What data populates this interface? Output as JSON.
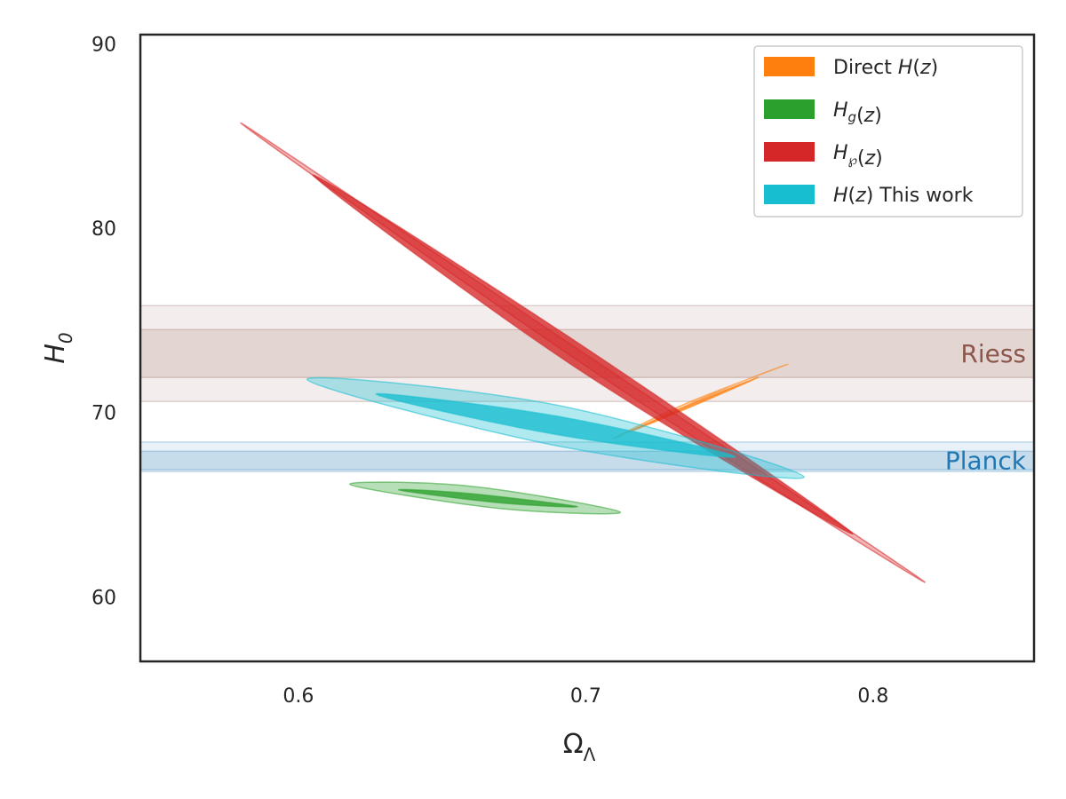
{
  "chart_data": {
    "type": "contour",
    "title": "",
    "xlabel": {
      "main": "Ω",
      "sub": "Λ"
    },
    "ylabel": {
      "main": "H",
      "sub": "0"
    },
    "xlim": [
      0.545,
      0.856
    ],
    "ylim": [
      56.5,
      90.5
    ],
    "xticks": [
      0.6,
      0.7,
      0.8
    ],
    "xtick_labels": [
      "0.6",
      "0.7",
      "0.8"
    ],
    "yticks": [
      60,
      70,
      80,
      90
    ],
    "ytick_labels": [
      "60",
      "70",
      "80",
      "90"
    ],
    "grid": false,
    "legend_position": "top-right",
    "bands": [
      {
        "name": "Riess",
        "center": 73.2,
        "sigma1": [
          71.9,
          74.5
        ],
        "sigma2": [
          70.6,
          75.8
        ],
        "color": "#8c564b"
      },
      {
        "name": "Planck",
        "center": 67.4,
        "sigma1": [
          66.9,
          67.9
        ],
        "sigma2": [
          66.8,
          68.4
        ],
        "color": "#1f77b4"
      }
    ],
    "series": [
      {
        "name_parts": [
          {
            "t": "Direct ",
            "i": false
          },
          {
            "t": "H",
            "i": true
          },
          {
            "t": "(",
            "i": false
          },
          {
            "t": "z",
            "i": true
          },
          {
            "t": ")",
            "i": false
          }
        ],
        "color": "#ff7f0e",
        "contours": [
          {
            "level": "1sigma",
            "points": [
              [
                0.716,
                69.0
              ],
              [
                0.735,
                70.2
              ],
              [
                0.76,
                71.9
              ],
              [
                0.742,
                70.8
              ]
            ]
          },
          {
            "level": "2sigma",
            "points": [
              [
                0.71,
                68.6
              ],
              [
                0.735,
                70.5
              ],
              [
                0.77,
                72.6
              ],
              [
                0.75,
                71.4
              ]
            ]
          }
        ]
      },
      {
        "name_parts": [
          {
            "t": "H",
            "i": true
          },
          {
            "t": "g",
            "i": true,
            "sub": true
          },
          {
            "t": "(",
            "i": false
          },
          {
            "t": "z",
            "i": true
          },
          {
            "t": ")",
            "i": false
          }
        ],
        "color": "#2ca02c",
        "contours": [
          {
            "level": "1sigma",
            "points": [
              [
                0.635,
                65.8
              ],
              [
                0.66,
                65.6
              ],
              [
                0.697,
                64.9
              ],
              [
                0.67,
                65.1
              ]
            ]
          },
          {
            "level": "2sigma",
            "points": [
              [
                0.618,
                66.1
              ],
              [
                0.66,
                66.0
              ],
              [
                0.712,
                64.6
              ],
              [
                0.67,
                64.8
              ]
            ]
          }
        ]
      },
      {
        "name_parts": [
          {
            "t": "H",
            "i": true
          },
          {
            "t": "℘",
            "i": true,
            "sub": true
          },
          {
            "t": "(",
            "i": false
          },
          {
            "t": "z",
            "i": true
          },
          {
            "t": ")",
            "i": false
          }
        ],
        "color": "#d62728",
        "contours": [
          {
            "level": "1sigma",
            "points": [
              [
                0.605,
                82.9
              ],
              [
                0.7,
                73.5
              ],
              [
                0.793,
                63.4
              ],
              [
                0.695,
                72.6
              ]
            ]
          },
          {
            "level": "2sigma",
            "points": [
              [
                0.58,
                85.7
              ],
              [
                0.69,
                74.2
              ],
              [
                0.818,
                60.8
              ],
              [
                0.705,
                72.0
              ]
            ]
          }
        ]
      },
      {
        "name_parts": [
          {
            "t": "H",
            "i": true
          },
          {
            "t": "(",
            "i": false
          },
          {
            "t": "z",
            "i": true
          },
          {
            "t": ") This work",
            "i": false
          }
        ],
        "color": "#17becf",
        "contours": [
          {
            "level": "1sigma",
            "points": [
              [
                0.627,
                71.0
              ],
              [
                0.69,
                69.8
              ],
              [
                0.752,
                67.6
              ],
              [
                0.69,
                68.8
              ]
            ]
          },
          {
            "level": "2sigma",
            "points": [
              [
                0.603,
                71.8
              ],
              [
                0.69,
                70.4
              ],
              [
                0.776,
                66.5
              ],
              [
                0.69,
                68.2
              ]
            ]
          }
        ]
      }
    ]
  }
}
